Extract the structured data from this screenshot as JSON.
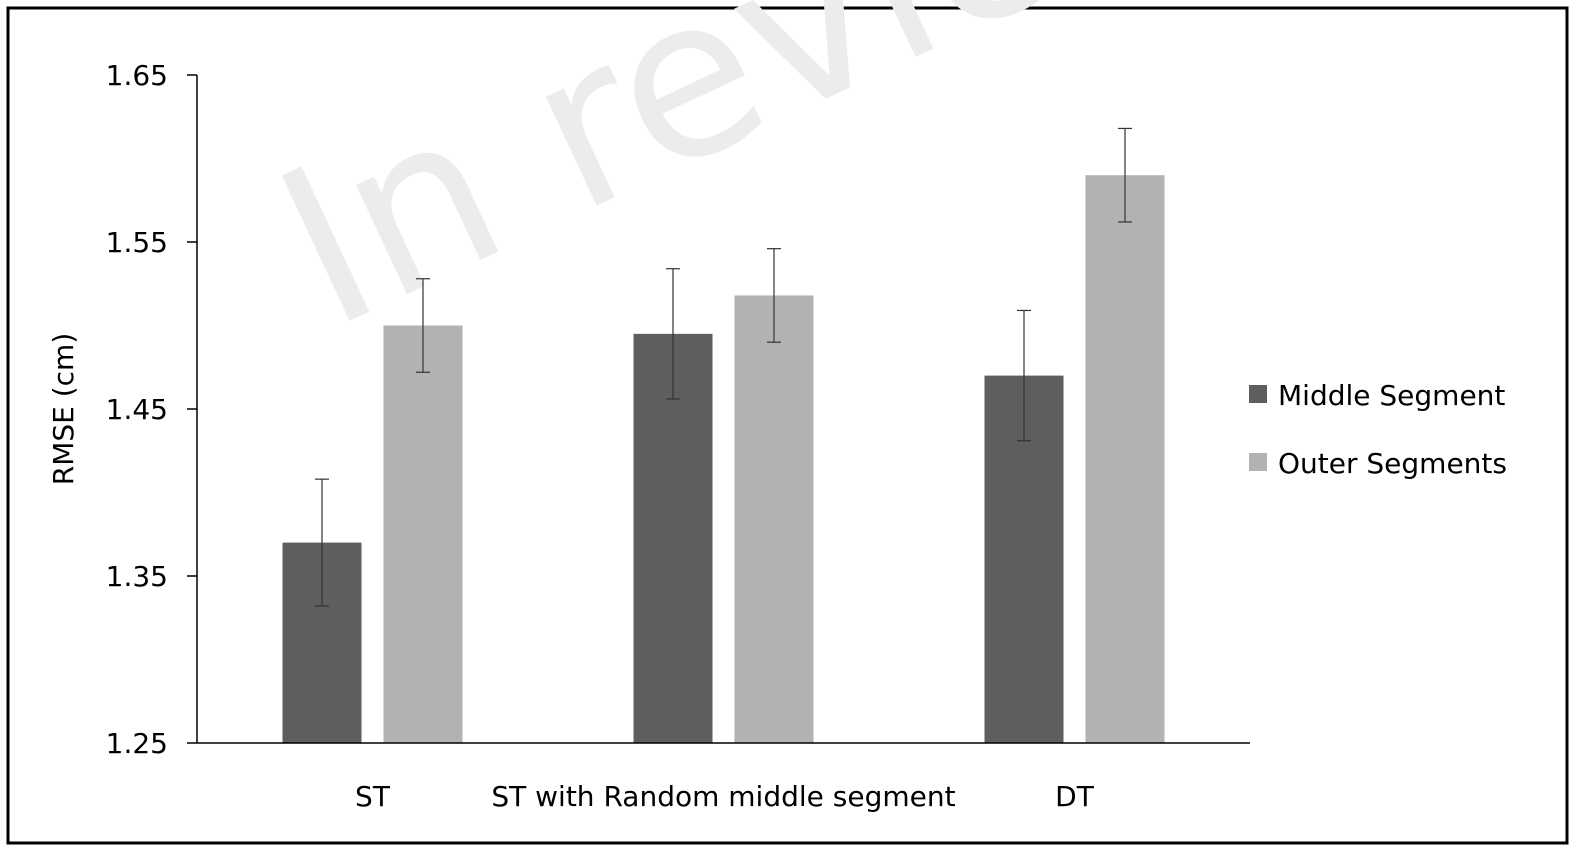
{
  "chart_data": {
    "type": "bar",
    "title": "",
    "xlabel": "",
    "ylabel": "RMSE (cm)",
    "ylim": [
      1.25,
      1.65
    ],
    "yticks": [
      "1.65",
      "1.55",
      "1.45",
      "1.35",
      "1.25"
    ],
    "categories": [
      "ST",
      "ST with Random middle segment",
      "DT"
    ],
    "series": [
      {
        "name": "Middle Segment",
        "color": "#5e5e5e",
        "values": [
          1.37,
          1.495,
          1.47
        ],
        "error": [
          0.038,
          0.039,
          0.039
        ]
      },
      {
        "name": "Outer Segments",
        "color": "#b2b2b2",
        "values": [
          1.5,
          1.518,
          1.59
        ],
        "error": [
          0.028,
          0.028,
          0.028
        ]
      }
    ],
    "error_bars": true,
    "grid": false,
    "legend_position": "right"
  },
  "watermark": {
    "text": "In review",
    "color": "#ececec"
  }
}
